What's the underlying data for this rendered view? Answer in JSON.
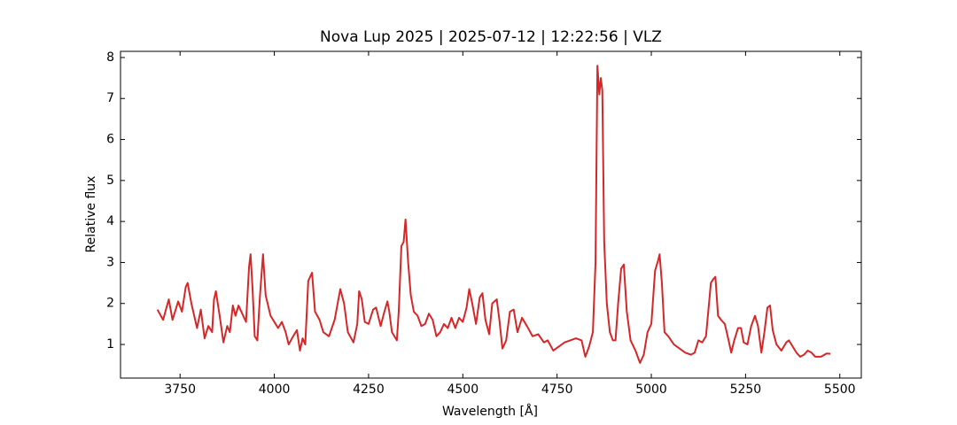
{
  "chart_data": {
    "type": "line",
    "title": "Nova Lup 2025 | 2025-07-12 | 12:22:56 | VLZ",
    "x_label": "Wavelength [Å]",
    "y_label": "Relative flux",
    "xlim": [
      3592,
      5557
    ],
    "ylim": [
      0.18,
      8.15
    ],
    "xticks": [
      3750,
      4000,
      4250,
      4500,
      4750,
      5000,
      5250,
      5500
    ],
    "yticks": [
      1,
      2,
      3,
      4,
      5,
      6,
      7,
      8
    ],
    "grid": false,
    "series": [
      {
        "color": "#d62728",
        "x": [
          3690,
          3705,
          3720,
          3730,
          3745,
          3755,
          3765,
          3770,
          3780,
          3795,
          3805,
          3815,
          3825,
          3835,
          3840,
          3845,
          3855,
          3865,
          3875,
          3882,
          3890,
          3897,
          3905,
          3915,
          3925,
          3933,
          3937,
          3942,
          3948,
          3955,
          3962,
          3970,
          3977,
          3990,
          4000,
          4010,
          4020,
          4030,
          4038,
          4050,
          4060,
          4068,
          4075,
          4082,
          4090,
          4100,
          4108,
          4120,
          4130,
          4145,
          4160,
          4175,
          4185,
          4195,
          4210,
          4220,
          4225,
          4232,
          4240,
          4250,
          4262,
          4270,
          4282,
          4292,
          4300,
          4305,
          4312,
          4325,
          4330,
          4337,
          4343,
          4348,
          4355,
          4362,
          4370,
          4380,
          4390,
          4400,
          4410,
          4420,
          4430,
          4440,
          4450,
          4460,
          4470,
          4480,
          4490,
          4500,
          4510,
          4517,
          4525,
          4535,
          4545,
          4552,
          4560,
          4570,
          4578,
          4590,
          4597,
          4605,
          4615,
          4625,
          4635,
          4645,
          4657,
          4670,
          4685,
          4700,
          4715,
          4725,
          4740,
          4755,
          4770,
          4785,
          4800,
          4815,
          4825,
          4835,
          4845,
          4852,
          4857,
          4862,
          4866,
          4870,
          4875,
          4882,
          4890,
          4898,
          4905,
          4912,
          4920,
          4927,
          4935,
          4945,
          4958,
          4970,
          4980,
          4990,
          5000,
          5010,
          5018,
          5022,
          5028,
          5035,
          5045,
          5060,
          5075,
          5090,
          5105,
          5115,
          5125,
          5135,
          5145,
          5158,
          5165,
          5170,
          5177,
          5185,
          5195,
          5205,
          5212,
          5220,
          5230,
          5238,
          5245,
          5255,
          5265,
          5275,
          5283,
          5292,
          5300,
          5308,
          5315,
          5322,
          5332,
          5345,
          5358,
          5365,
          5375,
          5385,
          5395,
          5405,
          5415,
          5425,
          5435,
          5450,
          5465,
          5475
        ],
        "values": [
          1.85,
          1.6,
          2.1,
          1.6,
          2.05,
          1.8,
          2.4,
          2.5,
          2.0,
          1.4,
          1.85,
          1.15,
          1.45,
          1.3,
          2.1,
          2.3,
          1.7,
          1.05,
          1.45,
          1.3,
          1.95,
          1.7,
          1.95,
          1.75,
          1.55,
          2.9,
          3.2,
          2.4,
          1.2,
          1.1,
          2.2,
          3.2,
          2.2,
          1.7,
          1.55,
          1.4,
          1.55,
          1.3,
          1.0,
          1.2,
          1.35,
          0.85,
          1.15,
          1.0,
          2.55,
          2.75,
          1.8,
          1.6,
          1.3,
          1.2,
          1.6,
          2.35,
          2.0,
          1.3,
          1.05,
          1.5,
          2.3,
          2.1,
          1.55,
          1.5,
          1.85,
          1.9,
          1.45,
          1.8,
          2.05,
          1.8,
          1.3,
          1.1,
          1.8,
          3.4,
          3.5,
          4.05,
          3.0,
          2.2,
          1.8,
          1.7,
          1.45,
          1.5,
          1.75,
          1.6,
          1.2,
          1.3,
          1.5,
          1.4,
          1.65,
          1.4,
          1.65,
          1.55,
          1.9,
          2.35,
          2.0,
          1.5,
          2.15,
          2.25,
          1.6,
          1.25,
          2.0,
          2.1,
          1.6,
          0.9,
          1.1,
          1.8,
          1.85,
          1.3,
          1.65,
          1.45,
          1.2,
          1.25,
          1.05,
          1.1,
          0.85,
          0.95,
          1.05,
          1.1,
          1.15,
          1.1,
          0.7,
          0.95,
          1.3,
          3.0,
          7.8,
          7.1,
          7.5,
          7.2,
          3.5,
          2.0,
          1.3,
          1.1,
          1.1,
          2.0,
          2.85,
          2.95,
          1.8,
          1.1,
          0.85,
          0.55,
          0.75,
          1.3,
          1.5,
          2.8,
          3.05,
          3.2,
          2.5,
          1.3,
          1.2,
          1.0,
          0.9,
          0.8,
          0.75,
          0.8,
          1.1,
          1.05,
          1.2,
          2.5,
          2.6,
          2.65,
          1.7,
          1.6,
          1.5,
          1.1,
          0.8,
          1.1,
          1.4,
          1.4,
          1.05,
          1.0,
          1.45,
          1.7,
          1.45,
          0.8,
          1.3,
          1.9,
          1.95,
          1.35,
          1.0,
          0.85,
          1.05,
          1.1,
          0.95,
          0.8,
          0.7,
          0.75,
          0.85,
          0.8,
          0.7,
          0.7,
          0.78,
          0.77
        ]
      }
    ]
  }
}
